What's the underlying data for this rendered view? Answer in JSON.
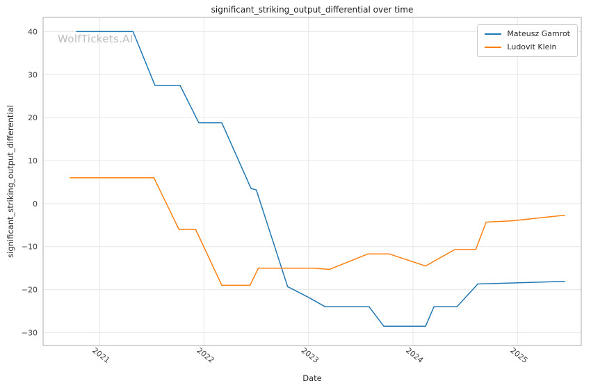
{
  "watermark": "WolfTickets.AI",
  "chart_data": {
    "type": "line",
    "title": "significant_striking_output_differential over time",
    "xlabel": "Date",
    "ylabel": "significant_striking_output_differential",
    "xlim": [
      2020.46,
      2025.61
    ],
    "ylim": [
      -33.0,
      43.3
    ],
    "xticks": [
      2021,
      2022,
      2023,
      2024,
      2025
    ],
    "yticks": [
      -30,
      -20,
      -10,
      0,
      10,
      20,
      30,
      40
    ],
    "grid": true,
    "legend_position": "upper right",
    "series": [
      {
        "name": "Mateusz Gamrot",
        "color": "#1f77b4",
        "points": [
          [
            2020.78,
            40.0
          ],
          [
            2021.32,
            40.0
          ],
          [
            2021.53,
            27.5
          ],
          [
            2021.77,
            27.5
          ],
          [
            2021.95,
            18.8
          ],
          [
            2022.17,
            18.8
          ],
          [
            2022.45,
            3.5
          ],
          [
            2022.5,
            3.2
          ],
          [
            2022.8,
            -19.3
          ],
          [
            2023.0,
            -21.8
          ],
          [
            2023.16,
            -24.0
          ],
          [
            2023.58,
            -24.0
          ],
          [
            2023.72,
            -28.5
          ],
          [
            2024.12,
            -28.5
          ],
          [
            2024.2,
            -24.0
          ],
          [
            2024.42,
            -24.0
          ],
          [
            2024.62,
            -18.7
          ],
          [
            2025.45,
            -18.1
          ]
        ]
      },
      {
        "name": "Ludovit Klein",
        "color": "#ff7f0e",
        "points": [
          [
            2020.72,
            6.0
          ],
          [
            2021.52,
            6.0
          ],
          [
            2021.76,
            -6.0
          ],
          [
            2021.92,
            -6.0
          ],
          [
            2022.17,
            -19.0
          ],
          [
            2022.44,
            -19.0
          ],
          [
            2022.52,
            -15.0
          ],
          [
            2023.05,
            -15.0
          ],
          [
            2023.2,
            -15.3
          ],
          [
            2023.57,
            -11.7
          ],
          [
            2023.77,
            -11.7
          ],
          [
            2024.12,
            -14.5
          ],
          [
            2024.4,
            -10.7
          ],
          [
            2024.6,
            -10.7
          ],
          [
            2024.7,
            -4.3
          ],
          [
            2024.95,
            -4.0
          ],
          [
            2025.45,
            -2.7
          ]
        ]
      }
    ]
  }
}
